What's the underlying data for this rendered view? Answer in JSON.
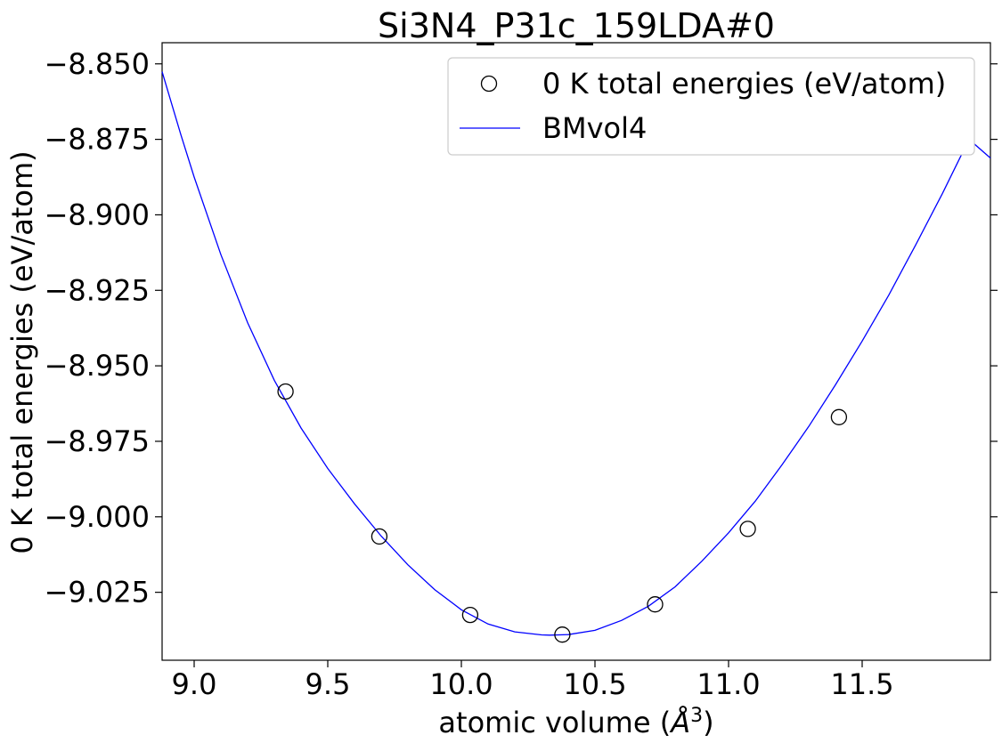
{
  "chart_data": {
    "type": "scatter",
    "title": "Si3N4_P31c_159LDA#0",
    "xlabel_text": "atomic volume (",
    "xlabel_unit": "Å",
    "xlabel_sup": "3",
    "xlabel_close": ")",
    "ylabel": "0 K total energies (eV/atom)",
    "xlim": [
      8.88,
      11.98
    ],
    "ylim": [
      -9.0475,
      -8.843
    ],
    "xticks": [
      9.0,
      9.5,
      10.0,
      10.5,
      11.0,
      11.5
    ],
    "xtick_labels": [
      "9.0",
      "9.5",
      "10.0",
      "10.5",
      "11.0",
      "11.5"
    ],
    "yticks": [
      -8.85,
      -8.875,
      -8.9,
      -8.925,
      -8.95,
      -8.975,
      -9.0,
      -9.025
    ],
    "ytick_labels": [
      "−8.850",
      "−8.875",
      "−8.900",
      "−8.925",
      "−8.950",
      "−8.975",
      "−9.000",
      "−9.025"
    ],
    "grid": false,
    "legend_position": "top-right",
    "series": [
      {
        "name": "0 K total energies (eV/atom)",
        "kind": "scatter",
        "marker": "open-circle",
        "color": "#000000",
        "x": [
          9.342,
          9.693,
          10.033,
          10.378,
          10.725,
          11.072,
          11.413
        ],
        "y": [
          -8.9585,
          -9.0065,
          -9.0325,
          -9.039,
          -9.029,
          -9.004,
          -8.967
        ]
      },
      {
        "name": "BMvol4",
        "kind": "line",
        "color": "#0000ff",
        "x": [
          8.88,
          8.95,
          9.0,
          9.1,
          9.2,
          9.3,
          9.4,
          9.5,
          9.6,
          9.7,
          9.8,
          9.9,
          10.0,
          10.1,
          10.2,
          10.3,
          10.33,
          10.4,
          10.5,
          10.6,
          10.7,
          10.8,
          10.9,
          11.0,
          11.1,
          11.2,
          11.3,
          11.4,
          11.5,
          11.6,
          11.7,
          11.8,
          11.9,
          11.98
        ],
        "y": [
          -8.8526,
          -8.8734,
          -8.8875,
          -8.9132,
          -8.9357,
          -8.9548,
          -8.9706,
          -8.984,
          -8.9957,
          -9.0064,
          -9.0159,
          -9.0241,
          -9.0308,
          -9.0355,
          -9.0381,
          -9.0391,
          -9.0392,
          -9.039,
          -9.0376,
          -9.0343,
          -9.0296,
          -9.0232,
          -9.0147,
          -9.0053,
          -8.9948,
          -8.9828,
          -8.9701,
          -8.9563,
          -8.9418,
          -8.9265,
          -8.91,
          -8.893,
          -8.875,
          -8.8812
        ]
      }
    ]
  }
}
